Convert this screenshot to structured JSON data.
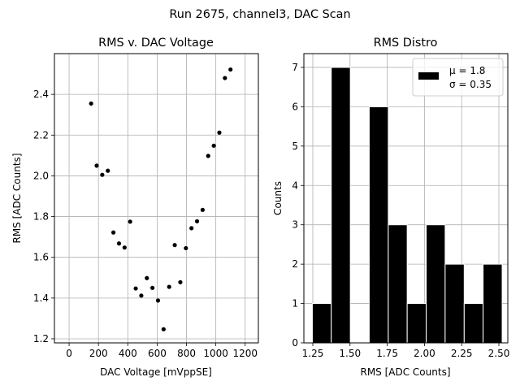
{
  "figure": {
    "suptitle": "Run 2675, channel3, DAC Scan"
  },
  "chart_data": [
    {
      "type": "scatter",
      "title": "RMS v. DAC Voltage",
      "xlabel": "DAC Voltage [mVppSE]",
      "ylabel": "RMS [ADC Counts]",
      "xlim": [
        -100,
        1290
      ],
      "ylim": [
        1.18,
        2.6
      ],
      "xticks": [
        0,
        200,
        400,
        600,
        800,
        1000,
        1200
      ],
      "xtick_labels": [
        "0",
        "200",
        "400",
        "600",
        "800",
        "1000",
        "1200"
      ],
      "yticks": [
        1.2,
        1.4,
        1.6,
        1.8,
        2.0,
        2.2,
        2.4
      ],
      "ytick_labels": [
        "1.2",
        "1.4",
        "1.6",
        "1.8",
        "2.0",
        "2.2",
        "2.4"
      ],
      "grid": true,
      "marker_color": "#000000",
      "points": [
        {
          "x": 150,
          "y": 2.355
        },
        {
          "x": 188,
          "y": 2.05
        },
        {
          "x": 226,
          "y": 2.005
        },
        {
          "x": 264,
          "y": 2.025
        },
        {
          "x": 302,
          "y": 1.722
        },
        {
          "x": 340,
          "y": 1.668
        },
        {
          "x": 378,
          "y": 1.648
        },
        {
          "x": 416,
          "y": 1.775
        },
        {
          "x": 454,
          "y": 1.447
        },
        {
          "x": 492,
          "y": 1.412
        },
        {
          "x": 530,
          "y": 1.498
        },
        {
          "x": 568,
          "y": 1.45
        },
        {
          "x": 606,
          "y": 1.388
        },
        {
          "x": 644,
          "y": 1.247
        },
        {
          "x": 682,
          "y": 1.455
        },
        {
          "x": 720,
          "y": 1.66
        },
        {
          "x": 758,
          "y": 1.478
        },
        {
          "x": 796,
          "y": 1.645
        },
        {
          "x": 834,
          "y": 1.743
        },
        {
          "x": 872,
          "y": 1.777
        },
        {
          "x": 910,
          "y": 1.833
        },
        {
          "x": 948,
          "y": 2.098
        },
        {
          "x": 986,
          "y": 2.148
        },
        {
          "x": 1024,
          "y": 2.212
        },
        {
          "x": 1062,
          "y": 2.48
        },
        {
          "x": 1100,
          "y": 2.522
        }
      ]
    },
    {
      "type": "bar",
      "subtype": "histogram",
      "title": "RMS Distro",
      "xlabel": "RMS [ADC Counts]",
      "ylabel": "Counts",
      "xlim": [
        1.19,
        2.56
      ],
      "ylim": [
        0,
        7.35
      ],
      "xticks": [
        1.25,
        1.5,
        1.75,
        2.0,
        2.25,
        2.5
      ],
      "xtick_labels": [
        "1.25",
        "1.50",
        "1.75",
        "2.00",
        "2.25",
        "2.50"
      ],
      "yticks": [
        0,
        1,
        2,
        3,
        4,
        5,
        6,
        7
      ],
      "ytick_labels": [
        "0",
        "1",
        "2",
        "3",
        "4",
        "5",
        "6",
        "7"
      ],
      "grid": true,
      "bar_color": "#000000",
      "edge_color": "#ffffff",
      "bin_edges": [
        1.247,
        1.374,
        1.502,
        1.629,
        1.757,
        1.884,
        2.012,
        2.139,
        2.267,
        2.394,
        2.522
      ],
      "counts": [
        1,
        7,
        0,
        6,
        3,
        1,
        3,
        2,
        1,
        2
      ],
      "legend": {
        "placement": "top-right",
        "label_line1": "μ = 1.8",
        "label_line2": "σ = 0.35"
      }
    }
  ]
}
